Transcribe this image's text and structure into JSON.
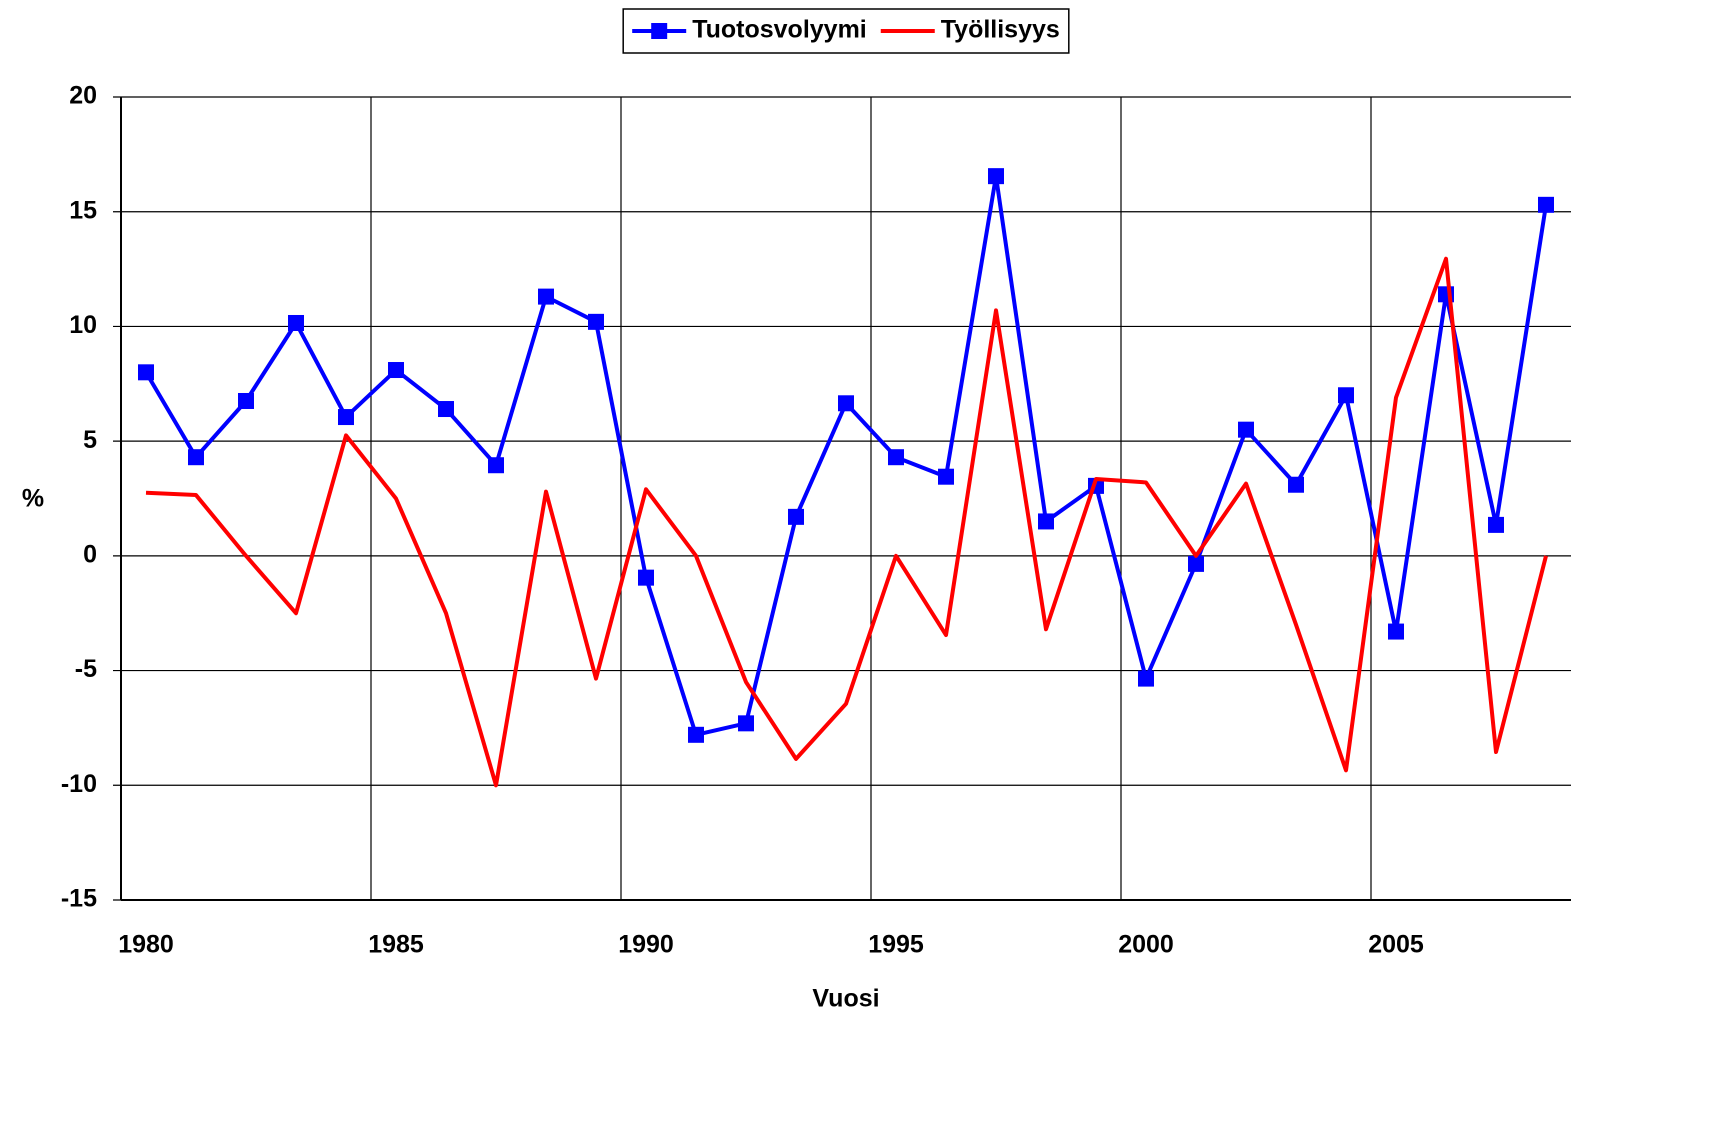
{
  "chart_data": {
    "type": "line",
    "xlabel": "Vuosi",
    "ylabel": "%",
    "categories": [
      "1980",
      null,
      null,
      null,
      null,
      "1985",
      null,
      null,
      null,
      null,
      "1990",
      null,
      null,
      null,
      null,
      "1995",
      null,
      null,
      null,
      null,
      "2000",
      null,
      null,
      null,
      null,
      "2005",
      null,
      null,
      null
    ],
    "series": [
      {
        "name": "Tuotosvolyymi",
        "color": "#0000ff",
        "marker": "square",
        "values": [
          8.0,
          4.3,
          6.75,
          10.15,
          6.05,
          8.1,
          6.4,
          3.95,
          11.3,
          10.2,
          -0.95,
          -7.8,
          -7.3,
          1.7,
          6.65,
          4.3,
          3.45,
          16.55,
          1.5,
          3.05,
          -5.35,
          -0.35,
          5.5,
          3.1,
          7.0,
          -3.3,
          11.4,
          1.35,
          15.3
        ]
      },
      {
        "name": "Työllisyys",
        "color": "#ff0000",
        "values": [
          2.75,
          2.65,
          0,
          -2.5,
          5.25,
          2.5,
          -2.5,
          -10.0,
          2.8,
          -5.35,
          2.9,
          0,
          -5.5,
          -8.85,
          -6.45,
          0,
          -3.45,
          10.7,
          -3.2,
          3.35,
          3.2,
          0,
          3.15,
          -3.0,
          -9.35,
          6.9,
          12.95,
          -8.55,
          0
        ]
      }
    ],
    "ylim": [
      -15,
      20
    ],
    "yticks": [
      -15,
      -10,
      -5,
      0,
      5,
      10,
      15,
      20
    ],
    "grid": true,
    "legend": "top"
  }
}
